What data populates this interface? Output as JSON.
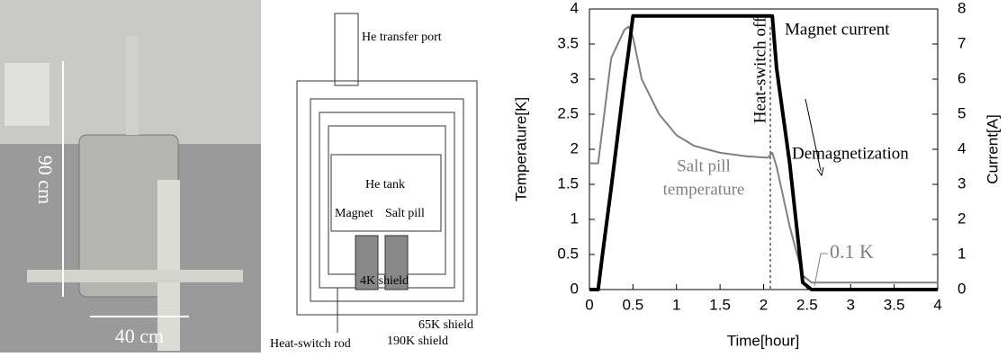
{
  "photo": {
    "height_label": "90 cm",
    "width_label": "40 cm"
  },
  "diagram": {
    "labels": [
      "He transfer port",
      "He tank",
      "Magnet",
      "Salt pill",
      "4K shield",
      "65K shield",
      "190K shield",
      "Heat-switch rod"
    ]
  },
  "chart_data": {
    "type": "line",
    "x": [
      0,
      0.1,
      0.15,
      0.25,
      0.4,
      0.45,
      0.5,
      0.6,
      0.8,
      1.0,
      1.2,
      1.5,
      1.8,
      2.05,
      2.1,
      2.15,
      2.3,
      2.45,
      2.55,
      4
    ],
    "series": [
      {
        "name": "Salt pill temperature",
        "color": "#808080",
        "values": [
          1.8,
          1.8,
          2.3,
          3.3,
          3.7,
          3.75,
          3.6,
          3.0,
          2.5,
          2.2,
          2.05,
          1.95,
          1.9,
          1.88,
          1.95,
          1.75,
          0.9,
          0.2,
          0.1,
          0.1
        ]
      },
      {
        "name": "Magnet current",
        "color": "#000000",
        "axis": "y2",
        "values": [
          0,
          0,
          1,
          2.9,
          5.9,
          6.8,
          7.8,
          7.8,
          7.8,
          7.8,
          7.8,
          7.8,
          7.8,
          7.8,
          7.8,
          6.3,
          3.6,
          0.2,
          0,
          0
        ]
      }
    ],
    "xlabel": "Time[hour]",
    "ylabel": "Temperature[K]",
    "y2label": "Current[A]",
    "xlim": [
      0,
      4
    ],
    "xticks": [
      0,
      0.5,
      1,
      1.5,
      2,
      2.5,
      3,
      3.5,
      4
    ],
    "ylim": [
      0,
      4
    ],
    "yticks": [
      0,
      0.5,
      1,
      1.5,
      2,
      2.5,
      3,
      3.5,
      4
    ],
    "y2lim": [
      0,
      8
    ],
    "y2ticks": [
      0,
      1,
      2,
      3,
      4,
      5,
      6,
      7,
      8
    ],
    "annotations": [
      "Heat-switch off",
      "Demagnetization",
      "Salt pill",
      "temperature",
      "0.1 K"
    ]
  }
}
